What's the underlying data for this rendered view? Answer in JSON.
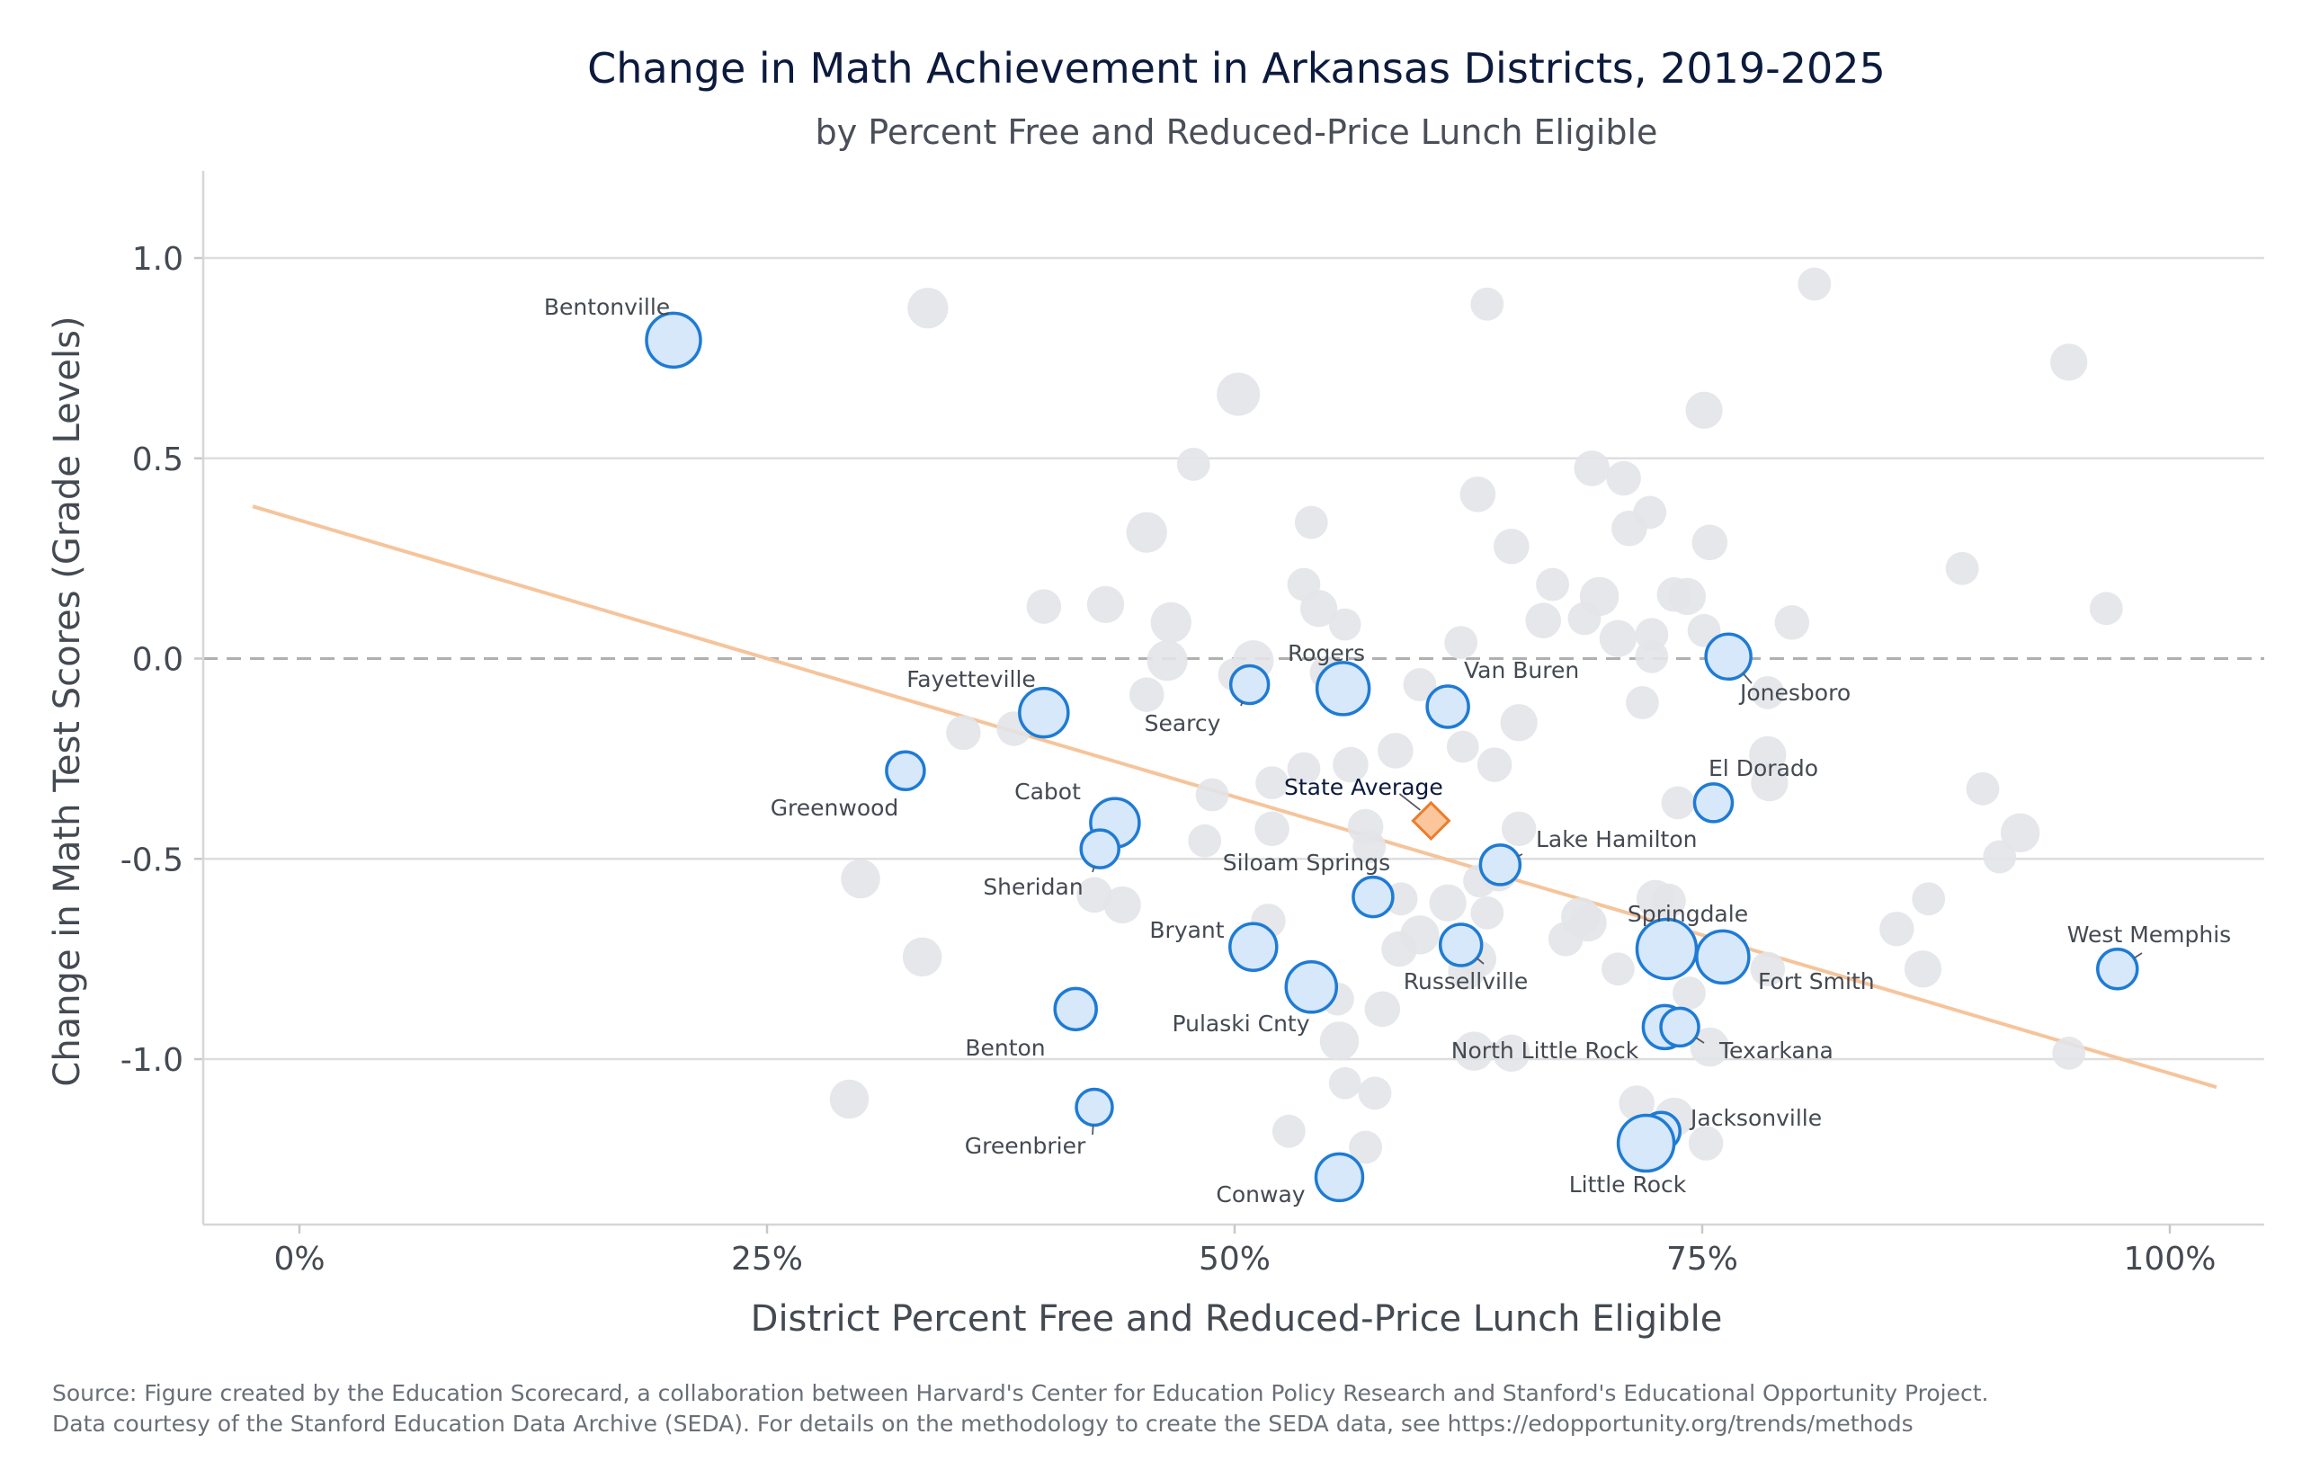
{
  "chart_data": {
    "type": "scatter",
    "title": "Change in Math Achievement in Arkansas Districts, 2019-2025",
    "subtitle": "by Percent Free and Reduced-Price Lunch Eligible",
    "xlabel": "District Percent Free and Reduced-Price Lunch Eligible",
    "ylabel": "Change in Math Test Scores (Grade Levels)",
    "xlim": [
      -0.025,
      1.025
    ],
    "ylim": [
      -1.41,
      1.22
    ],
    "xticks": [
      {
        "value": 0,
        "label": "0%"
      },
      {
        "value": 0.25,
        "label": "25%"
      },
      {
        "value": 0.5,
        "label": "50%"
      },
      {
        "value": 0.75,
        "label": "75%"
      },
      {
        "value": 1.0,
        "label": "100%"
      }
    ],
    "yticks": [
      {
        "value": 1.0,
        "label": "1.0"
      },
      {
        "value": 0.5,
        "label": "0.5"
      },
      {
        "value": 0.0,
        "label": "0.0"
      },
      {
        "value": -0.5,
        "label": "-0.5"
      },
      {
        "value": -1.0,
        "label": "-1.0"
      }
    ],
    "grid": "horizontal",
    "zero_line": "dashed",
    "trend_line": {
      "x": [
        -0.025,
        1.025
      ],
      "y": [
        0.38,
        -1.07
      ],
      "color": "#f6c49b"
    },
    "colors": {
      "highlight_fill": "#d6e8fa",
      "highlight_stroke": "#1f7bd4",
      "background_point": "#e2e4e8",
      "state_fill": "#fbc69b",
      "state_stroke": "#ea7d2c",
      "grid": "#dedede",
      "zero_line": "#b0b0b0"
    },
    "state_average": {
      "name": "State Average",
      "x": 0.605,
      "y": -0.405
    },
    "highlighted": [
      {
        "name": "Bentonville",
        "x": 0.2,
        "y": 0.795,
        "size": 1.0
      },
      {
        "name": "Fayetteville",
        "x": 0.398,
        "y": -0.135,
        "size": 0.85
      },
      {
        "name": "Greenwood",
        "x": 0.324,
        "y": -0.28,
        "size": 0.55
      },
      {
        "name": "Cabot",
        "x": 0.436,
        "y": -0.41,
        "size": 0.85
      },
      {
        "name": "Sheridan",
        "x": 0.428,
        "y": -0.475,
        "size": 0.55
      },
      {
        "name": "Searcy",
        "x": 0.508,
        "y": -0.065,
        "size": 0.55
      },
      {
        "name": "Rogers",
        "x": 0.558,
        "y": -0.075,
        "size": 0.95
      },
      {
        "name": "Van Buren",
        "x": 0.614,
        "y": -0.12,
        "size": 0.65
      },
      {
        "name": "Jonesboro",
        "x": 0.764,
        "y": 0.005,
        "size": 0.75
      },
      {
        "name": "El Dorado",
        "x": 0.756,
        "y": -0.36,
        "size": 0.55
      },
      {
        "name": "Lake Hamilton",
        "x": 0.642,
        "y": -0.515,
        "size": 0.6
      },
      {
        "name": "Siloam Springs",
        "x": 0.574,
        "y": -0.595,
        "size": 0.6
      },
      {
        "name": "Springdale",
        "x": 0.731,
        "y": -0.725,
        "size": 1.15
      },
      {
        "name": "Fort Smith",
        "x": 0.761,
        "y": -0.745,
        "size": 0.95
      },
      {
        "name": "Bryant",
        "x": 0.51,
        "y": -0.72,
        "size": 0.8
      },
      {
        "name": "Russellville",
        "x": 0.621,
        "y": -0.715,
        "size": 0.65
      },
      {
        "name": "Pulaski Cnty",
        "x": 0.541,
        "y": -0.82,
        "size": 0.9
      },
      {
        "name": "Benton",
        "x": 0.415,
        "y": -0.875,
        "size": 0.65
      },
      {
        "name": "North Little Rock",
        "x": 0.73,
        "y": -0.92,
        "size": 0.7
      },
      {
        "name": "Texarkana",
        "x": 0.738,
        "y": -0.92,
        "size": 0.55
      },
      {
        "name": "West Memphis",
        "x": 0.972,
        "y": -0.775,
        "size": 0.6
      },
      {
        "name": "Greenbrier",
        "x": 0.425,
        "y": -1.12,
        "size": 0.5
      },
      {
        "name": "Jacksonville",
        "x": 0.728,
        "y": -1.18,
        "size": 0.55
      },
      {
        "name": "Little Rock",
        "x": 0.72,
        "y": -1.21,
        "size": 1.05
      },
      {
        "name": "Conway",
        "x": 0.556,
        "y": -1.295,
        "size": 0.8
      }
    ],
    "background": [
      [
        0.336,
        0.875,
        0.45
      ],
      [
        0.635,
        0.885,
        0.3
      ],
      [
        0.81,
        0.935,
        0.3
      ],
      [
        0.946,
        0.74,
        0.38
      ],
      [
        0.502,
        0.66,
        0.5
      ],
      [
        0.751,
        0.62,
        0.38
      ],
      [
        0.478,
        0.485,
        0.3
      ],
      [
        0.691,
        0.475,
        0.35
      ],
      [
        0.708,
        0.45,
        0.33
      ],
      [
        0.63,
        0.41,
        0.35
      ],
      [
        0.453,
        0.315,
        0.45
      ],
      [
        0.541,
        0.34,
        0.3
      ],
      [
        0.722,
        0.365,
        0.3
      ],
      [
        0.711,
        0.325,
        0.35
      ],
      [
        0.754,
        0.29,
        0.35
      ],
      [
        0.648,
        0.28,
        0.35
      ],
      [
        0.67,
        0.185,
        0.3
      ],
      [
        0.537,
        0.185,
        0.3
      ],
      [
        0.889,
        0.225,
        0.3
      ],
      [
        0.398,
        0.13,
        0.33
      ],
      [
        0.431,
        0.135,
        0.38
      ],
      [
        0.466,
        0.09,
        0.45
      ],
      [
        0.545,
        0.125,
        0.38
      ],
      [
        0.559,
        0.085,
        0.28
      ],
      [
        0.665,
        0.095,
        0.35
      ],
      [
        0.687,
        0.1,
        0.3
      ],
      [
        0.695,
        0.155,
        0.42
      ],
      [
        0.735,
        0.16,
        0.33
      ],
      [
        0.742,
        0.155,
        0.38
      ],
      [
        0.798,
        0.09,
        0.33
      ],
      [
        0.966,
        0.125,
        0.3
      ],
      [
        0.621,
        0.04,
        0.3
      ],
      [
        0.705,
        0.05,
        0.38
      ],
      [
        0.723,
        0.06,
        0.3
      ],
      [
        0.723,
        0.005,
        0.3
      ],
      [
        0.751,
        0.07,
        0.3
      ],
      [
        0.464,
        -0.005,
        0.45
      ],
      [
        0.51,
        -0.005,
        0.45
      ],
      [
        0.5,
        -0.04,
        0.3
      ],
      [
        0.549,
        -0.035,
        0.3
      ],
      [
        0.599,
        -0.065,
        0.3
      ],
      [
        0.453,
        -0.09,
        0.33
      ],
      [
        0.718,
        -0.11,
        0.3
      ],
      [
        0.785,
        -0.085,
        0.3
      ],
      [
        0.652,
        -0.16,
        0.38
      ],
      [
        0.355,
        -0.185,
        0.33
      ],
      [
        0.382,
        -0.175,
        0.33
      ],
      [
        0.622,
        -0.22,
        0.28
      ],
      [
        0.586,
        -0.23,
        0.35
      ],
      [
        0.562,
        -0.265,
        0.35
      ],
      [
        0.639,
        -0.265,
        0.33
      ],
      [
        0.537,
        -0.275,
        0.3
      ],
      [
        0.52,
        -0.31,
        0.3
      ],
      [
        0.488,
        -0.34,
        0.3
      ],
      [
        0.785,
        -0.24,
        0.38
      ],
      [
        0.786,
        -0.31,
        0.38
      ],
      [
        0.9,
        -0.325,
        0.3
      ],
      [
        0.737,
        -0.36,
        0.3
      ],
      [
        0.52,
        -0.425,
        0.33
      ],
      [
        0.484,
        -0.455,
        0.3
      ],
      [
        0.57,
        -0.42,
        0.35
      ],
      [
        0.572,
        -0.47,
        0.3
      ],
      [
        0.652,
        -0.425,
        0.33
      ],
      [
        0.92,
        -0.435,
        0.42
      ],
      [
        0.909,
        -0.495,
        0.3
      ],
      [
        0.631,
        -0.555,
        0.3
      ],
      [
        0.641,
        -0.535,
        0.38
      ],
      [
        0.3,
        -0.55,
        0.42
      ],
      [
        0.425,
        -0.59,
        0.35
      ],
      [
        0.44,
        -0.615,
        0.38
      ],
      [
        0.518,
        -0.655,
        0.33
      ],
      [
        0.589,
        -0.6,
        0.3
      ],
      [
        0.614,
        -0.61,
        0.38
      ],
      [
        0.635,
        -0.635,
        0.3
      ],
      [
        0.599,
        -0.69,
        0.42
      ],
      [
        0.685,
        -0.645,
        0.42
      ],
      [
        0.689,
        -0.66,
        0.38
      ],
      [
        0.677,
        -0.7,
        0.33
      ],
      [
        0.725,
        -0.6,
        0.4
      ],
      [
        0.732,
        -0.605,
        0.33
      ],
      [
        0.705,
        -0.775,
        0.3
      ],
      [
        0.785,
        -0.775,
        0.33
      ],
      [
        0.871,
        -0.6,
        0.3
      ],
      [
        0.854,
        -0.675,
        0.33
      ],
      [
        0.868,
        -0.775,
        0.38
      ],
      [
        0.333,
        -0.745,
        0.42
      ],
      [
        0.63,
        -0.75,
        0.38
      ],
      [
        0.624,
        -0.78,
        0.38
      ],
      [
        0.588,
        -0.725,
        0.35
      ],
      [
        0.579,
        -0.875,
        0.35
      ],
      [
        0.555,
        -0.85,
        0.3
      ],
      [
        0.743,
        -0.835,
        0.3
      ],
      [
        0.556,
        -0.955,
        0.42
      ],
      [
        0.628,
        -0.98,
        0.42
      ],
      [
        0.648,
        -0.985,
        0.38
      ],
      [
        0.754,
        -0.97,
        0.42
      ],
      [
        0.946,
        -0.985,
        0.3
      ],
      [
        0.715,
        -1.11,
        0.35
      ],
      [
        0.735,
        -1.145,
        0.42
      ],
      [
        0.559,
        -1.06,
        0.28
      ],
      [
        0.575,
        -1.085,
        0.3
      ],
      [
        0.294,
        -1.1,
        0.42
      ],
      [
        0.529,
        -1.18,
        0.3
      ],
      [
        0.57,
        -1.22,
        0.3
      ],
      [
        0.752,
        -1.21,
        0.33
      ]
    ]
  },
  "source": {
    "line1": "Source: Figure created by the Education Scorecard, a collaboration between Harvard's Center for Education Policy Research and Stanford's Educational Opportunity Project.",
    "line2": "Data courtesy of the Stanford Education Data Archive (SEDA). For details on the methodology to create the SEDA data, see https://edopportunity.org/trends/methods"
  }
}
